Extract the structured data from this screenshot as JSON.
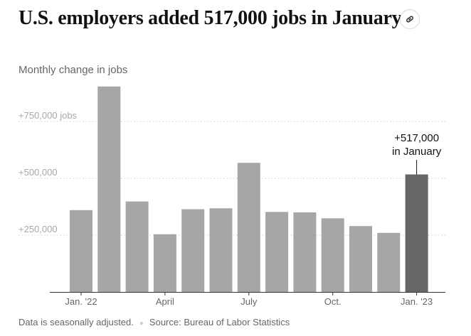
{
  "header": {
    "title": "U.S. employers added 517,000 jobs in January.",
    "link_icon": "link-icon"
  },
  "chart_data": {
    "type": "bar",
    "title": "U.S. employers added 517,000 jobs in January.",
    "ylabel": "Monthly change in jobs",
    "categories": [
      "Jan. 2022",
      "Feb. 2022",
      "Mar. 2022",
      "Apr. 2022",
      "May 2022",
      "Jun. 2022",
      "Jul. 2022",
      "Aug. 2022",
      "Sep. 2022",
      "Oct. 2022",
      "Nov. 2022",
      "Dec. 2022",
      "Jan. 2023"
    ],
    "values": [
      360000,
      904000,
      398000,
      254000,
      364000,
      368000,
      568000,
      352000,
      350000,
      324000,
      290000,
      260000,
      517000
    ],
    "x_tick_labels": [
      "Jan. '22",
      "April",
      "July",
      "Oct.",
      "Jan. '23"
    ],
    "x_tick_indices": [
      0,
      3,
      6,
      9,
      12
    ],
    "y_ticks": [
      250000,
      500000,
      750000
    ],
    "y_tick_labels": [
      "+250,000",
      "+500,000",
      "+750,000 jobs"
    ],
    "ylim": [
      0,
      950000
    ],
    "grid": true,
    "highlight_index": 12,
    "annotation": {
      "line1": "+517,000",
      "line2": "in January"
    },
    "colors": {
      "bar": "#a6a6a6",
      "highlight": "#666666"
    }
  },
  "footer": {
    "note": "Data is seasonally adjusted.",
    "source": "Source: Bureau of Labor Statistics"
  }
}
